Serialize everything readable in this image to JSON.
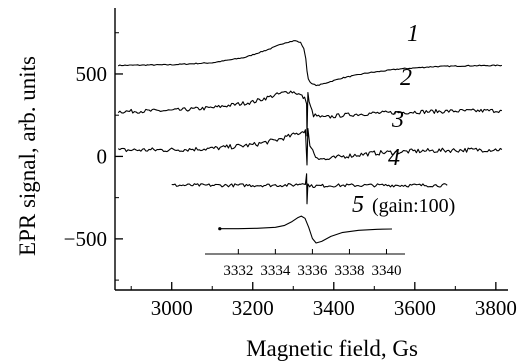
{
  "chart_data": {
    "type": "line",
    "title": "",
    "xlabel": "Magnetic field, Gs",
    "ylabel": "EPR signal, arb. units",
    "xlim": [
      2860,
      3830
    ],
    "ylim": [
      -810,
      900
    ],
    "xticks": [
      3000,
      3200,
      3400,
      3600,
      3800
    ],
    "xtick_labels": [
      "3000",
      "3200",
      "3400",
      "3600",
      "3800"
    ],
    "yticks": [
      500,
      0,
      -500
    ],
    "ytick_labels": [
      "500",
      "0",
      "−500"
    ],
    "grid": false,
    "legend": "none",
    "series": [
      {
        "label": "1",
        "points": [
          [
            2868,
            552
          ],
          [
            3000,
            556
          ],
          [
            3100,
            568
          ],
          [
            3180,
            600
          ],
          [
            3240,
            650
          ],
          [
            3280,
            690
          ],
          [
            3305,
            702
          ],
          [
            3318,
            690
          ],
          [
            3326,
            655
          ],
          [
            3331,
            590
          ],
          [
            3334,
            520
          ],
          [
            3337,
            470
          ],
          [
            3345,
            440
          ],
          [
            3360,
            430
          ],
          [
            3380,
            445
          ],
          [
            3420,
            475
          ],
          [
            3480,
            505
          ],
          [
            3560,
            530
          ],
          [
            3650,
            545
          ],
          [
            3740,
            550
          ],
          [
            3815,
            552
          ]
        ]
      },
      {
        "label": "2",
        "points": [
          [
            2868,
            272
          ],
          [
            3000,
            278
          ],
          [
            3100,
            295
          ],
          [
            3200,
            330
          ],
          [
            3260,
            375
          ],
          [
            3290,
            395
          ],
          [
            3305,
            388
          ],
          [
            3318,
            372
          ],
          [
            3328,
            350
          ],
          [
            3333,
            330
          ],
          [
            3334,
            120
          ],
          [
            3336,
            390
          ],
          [
            3339,
            325
          ],
          [
            3350,
            250
          ],
          [
            3375,
            235
          ],
          [
            3420,
            250
          ],
          [
            3500,
            262
          ],
          [
            3600,
            270
          ],
          [
            3700,
            275
          ],
          [
            3815,
            278
          ]
        ]
      },
      {
        "label": "3",
        "points": [
          [
            2868,
            38
          ],
          [
            3000,
            40
          ],
          [
            3100,
            48
          ],
          [
            3200,
            70
          ],
          [
            3260,
            100
          ],
          [
            3300,
            130
          ],
          [
            3320,
            148
          ],
          [
            3330,
            160
          ],
          [
            3334,
            -60
          ],
          [
            3336,
            160
          ],
          [
            3341,
            75
          ],
          [
            3355,
            0
          ],
          [
            3380,
            -20
          ],
          [
            3420,
            0
          ],
          [
            3500,
            20
          ],
          [
            3600,
            32
          ],
          [
            3700,
            38
          ],
          [
            3815,
            42
          ]
        ]
      },
      {
        "label": "4",
        "points": [
          [
            3000,
            -175
          ],
          [
            3100,
            -175
          ],
          [
            3200,
            -175
          ],
          [
            3300,
            -174
          ],
          [
            3330,
            -160
          ],
          [
            3333,
            -100
          ],
          [
            3334,
            -290
          ],
          [
            3336,
            -170
          ],
          [
            3345,
            -180
          ],
          [
            3400,
            -176
          ],
          [
            3500,
            -175
          ],
          [
            3600,
            -175
          ],
          [
            3680,
            -175
          ]
        ]
      }
    ],
    "inset": {
      "label": "5",
      "note": "(gain:100)",
      "xlim": [
        3330.2,
        3341.0
      ],
      "xticks": [
        3332,
        3334,
        3336,
        3338,
        3340
      ],
      "xtick_labels": [
        "3332",
        "3334",
        "3336",
        "3338",
        "3340"
      ],
      "points": [
        [
          3331.0,
          -438
        ],
        [
          3332.0,
          -438
        ],
        [
          3333.0,
          -436
        ],
        [
          3334.0,
          -430
        ],
        [
          3334.5,
          -418
        ],
        [
          3334.9,
          -395
        ],
        [
          3335.2,
          -372
        ],
        [
          3335.4,
          -362
        ],
        [
          3335.6,
          -375
        ],
        [
          3335.8,
          -430
        ],
        [
          3336.0,
          -498
        ],
        [
          3336.2,
          -525
        ],
        [
          3336.5,
          -515
        ],
        [
          3337.0,
          -485
        ],
        [
          3337.6,
          -462
        ],
        [
          3338.5,
          -448
        ],
        [
          3339.5,
          -442
        ],
        [
          3340.3,
          -440
        ]
      ]
    }
  }
}
